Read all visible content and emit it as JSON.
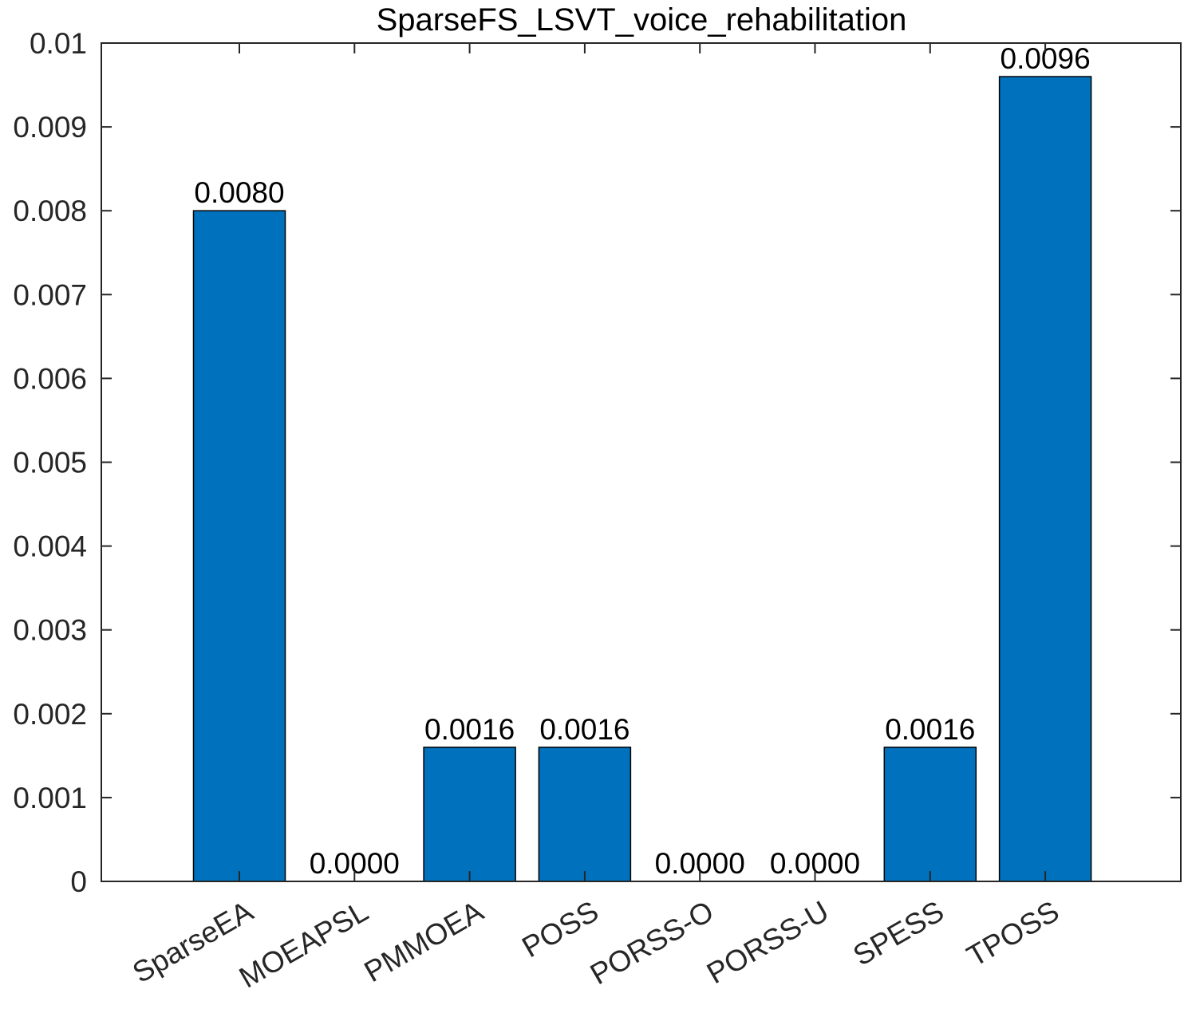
{
  "chart_data": {
    "type": "bar",
    "title": "SparseFS_LSVT_voice_rehabilitation",
    "xlabel": "",
    "ylabel": "",
    "categories": [
      "SparseEA",
      "MOEAPSL",
      "PMMOEA",
      "POSS",
      "PORSS-O",
      "PORSS-U",
      "SPESS",
      "TPOSS"
    ],
    "values": [
      0.008,
      0.0,
      0.0016,
      0.0016,
      0.0,
      0.0,
      0.0016,
      0.0096
    ],
    "data_labels": [
      "0.0080",
      "0.0000",
      "0.0016",
      "0.0016",
      "0.0000",
      "0.0000",
      "0.0016",
      "0.0096"
    ],
    "ylim": [
      0,
      0.01
    ],
    "yticks": [
      0,
      0.001,
      0.002,
      0.003,
      0.004,
      0.005,
      0.006,
      0.007,
      0.008,
      0.009,
      0.01
    ],
    "ytick_labels": [
      "0",
      "0.001",
      "0.002",
      "0.003",
      "0.004",
      "0.005",
      "0.006",
      "0.007",
      "0.008",
      "0.009",
      "0.01"
    ],
    "grid": false,
    "legend": "none",
    "bar_color": "#0072BD",
    "axis_color": "#262626"
  }
}
